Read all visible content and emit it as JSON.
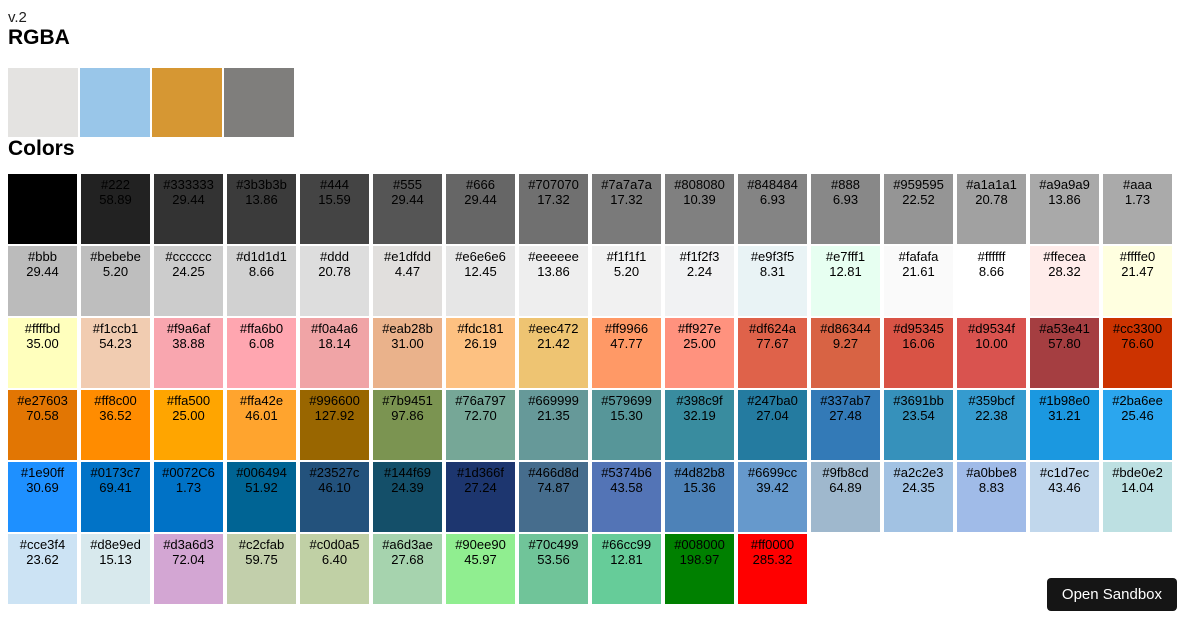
{
  "page": {
    "version_label": "v.2",
    "rgba_heading": "RGBA",
    "colors_heading": "Colors",
    "background": "#ffffff"
  },
  "rgba_swatches": [
    {
      "color": "#e4e3e1"
    },
    {
      "color": "#99c6e9"
    },
    {
      "color": "#d69733"
    },
    {
      "color": "#7f7e7c"
    }
  ],
  "color_grid": {
    "text_color": "#000000",
    "rows": [
      [
        {
          "hex": "",
          "value": "",
          "bg": "#000000"
        },
        {
          "hex": "#222",
          "value": "58.89"
        },
        {
          "hex": "#333333",
          "value": "29.44"
        },
        {
          "hex": "#3b3b3b",
          "value": "13.86"
        },
        {
          "hex": "#444",
          "value": "15.59"
        },
        {
          "hex": "#555",
          "value": "29.44"
        },
        {
          "hex": "#666",
          "value": "29.44"
        },
        {
          "hex": "#707070",
          "value": "17.32"
        },
        {
          "hex": "#7a7a7a",
          "value": "17.32"
        },
        {
          "hex": "#808080",
          "value": "10.39"
        },
        {
          "hex": "#848484",
          "value": "6.93"
        },
        {
          "hex": "#888",
          "value": "6.93"
        },
        {
          "hex": "#959595",
          "value": "22.52"
        },
        {
          "hex": "#a1a1a1",
          "value": "20.78"
        },
        {
          "hex": "#a9a9a9",
          "value": "13.86"
        },
        {
          "hex": "#aaa",
          "value": "1.73"
        }
      ],
      [
        {
          "hex": "#bbb",
          "value": "29.44"
        },
        {
          "hex": "#bebebe",
          "value": "5.20"
        },
        {
          "hex": "#cccccc",
          "value": "24.25"
        },
        {
          "hex": "#d1d1d1",
          "value": "8.66"
        },
        {
          "hex": "#ddd",
          "value": "20.78"
        },
        {
          "hex": "#e1dfdd",
          "value": "4.47"
        },
        {
          "hex": "#e6e6e6",
          "value": "12.45"
        },
        {
          "hex": "#eeeeee",
          "value": "13.86"
        },
        {
          "hex": "#f1f1f1",
          "value": "5.20"
        },
        {
          "hex": "#f1f2f3",
          "value": "2.24"
        },
        {
          "hex": "#e9f3f5",
          "value": "8.31"
        },
        {
          "hex": "#e7fff1",
          "value": "12.81"
        },
        {
          "hex": "#fafafa",
          "value": "21.61"
        },
        {
          "hex": "#ffffff",
          "value": "8.66"
        },
        {
          "hex": "#ffecea",
          "value": "28.32"
        },
        {
          "hex": "#ffffe0",
          "value": "21.47"
        }
      ],
      [
        {
          "hex": "#ffffbd",
          "value": "35.00"
        },
        {
          "hex": "#f1ccb1",
          "value": "54.23"
        },
        {
          "hex": "#f9a6af",
          "value": "38.88"
        },
        {
          "hex": "#ffa6b0",
          "value": "6.08"
        },
        {
          "hex": "#f0a4a6",
          "value": "18.14"
        },
        {
          "hex": "#eab28b",
          "value": "31.00"
        },
        {
          "hex": "#fdc181",
          "value": "26.19"
        },
        {
          "hex": "#eec472",
          "value": "21.42"
        },
        {
          "hex": "#ff9966",
          "value": "47.77"
        },
        {
          "hex": "#ff927e",
          "value": "25.00"
        },
        {
          "hex": "#df624a",
          "value": "77.67"
        },
        {
          "hex": "#d86344",
          "value": "9.27"
        },
        {
          "hex": "#d95345",
          "value": "16.06"
        },
        {
          "hex": "#d9534f",
          "value": "10.00"
        },
        {
          "hex": "#a53e41",
          "value": "57.80"
        },
        {
          "hex": "#cc3300",
          "value": "76.60"
        }
      ],
      [
        {
          "hex": "#e27603",
          "value": "70.58"
        },
        {
          "hex": "#ff8c00",
          "value": "36.52"
        },
        {
          "hex": "#ffa500",
          "value": "25.00"
        },
        {
          "hex": "#ffa42e",
          "value": "46.01"
        },
        {
          "hex": "#996600",
          "value": "127.92"
        },
        {
          "hex": "#7b9451",
          "value": "97.86"
        },
        {
          "hex": "#76a797",
          "value": "72.70"
        },
        {
          "hex": "#669999",
          "value": "21.35"
        },
        {
          "hex": "#579699",
          "value": "15.30"
        },
        {
          "hex": "#398c9f",
          "value": "32.19"
        },
        {
          "hex": "#247ba0",
          "value": "27.04"
        },
        {
          "hex": "#337ab7",
          "value": "27.48"
        },
        {
          "hex": "#3691bb",
          "value": "23.54"
        },
        {
          "hex": "#359bcf",
          "value": "22.38"
        },
        {
          "hex": "#1b98e0",
          "value": "31.21"
        },
        {
          "hex": "#2ba6ee",
          "value": "25.46"
        }
      ],
      [
        {
          "hex": "#1e90ff",
          "value": "30.69"
        },
        {
          "hex": "#0173c7",
          "value": "69.41"
        },
        {
          "hex": "#0072C6",
          "value": "1.73"
        },
        {
          "hex": "#006494",
          "value": "51.92"
        },
        {
          "hex": "#23527c",
          "value": "46.10"
        },
        {
          "hex": "#144f69",
          "value": "24.39"
        },
        {
          "hex": "#1d366f",
          "value": "27.24"
        },
        {
          "hex": "#466d8d",
          "value": "74.87"
        },
        {
          "hex": "#5374b6",
          "value": "43.58"
        },
        {
          "hex": "#4d82b8",
          "value": "15.36"
        },
        {
          "hex": "#6699cc",
          "value": "39.42"
        },
        {
          "hex": "#9fb8cd",
          "value": "64.89"
        },
        {
          "hex": "#a2c2e3",
          "value": "24.35"
        },
        {
          "hex": "#a0bbe8",
          "value": "8.83"
        },
        {
          "hex": "#c1d7ec",
          "value": "43.46"
        },
        {
          "hex": "#bde0e2",
          "value": "14.04"
        }
      ],
      [
        {
          "hex": "#cce3f4",
          "value": "23.62"
        },
        {
          "hex": "#d8e9ed",
          "value": "15.13"
        },
        {
          "hex": "#d3a6d3",
          "value": "72.04"
        },
        {
          "hex": "#c2cfab",
          "value": "59.75"
        },
        {
          "hex": "#c0d0a5",
          "value": "6.40"
        },
        {
          "hex": "#a6d3ae",
          "value": "27.68"
        },
        {
          "hex": "#90ee90",
          "value": "45.97"
        },
        {
          "hex": "#70c499",
          "value": "53.56"
        },
        {
          "hex": "#66cc99",
          "value": "12.81"
        },
        {
          "hex": "#008000",
          "value": "198.97"
        },
        {
          "hex": "#ff0000",
          "value": "285.32"
        }
      ]
    ]
  },
  "sandbox_button": {
    "label": "Open Sandbox",
    "background": "#151515",
    "text_color": "#ffffff"
  }
}
